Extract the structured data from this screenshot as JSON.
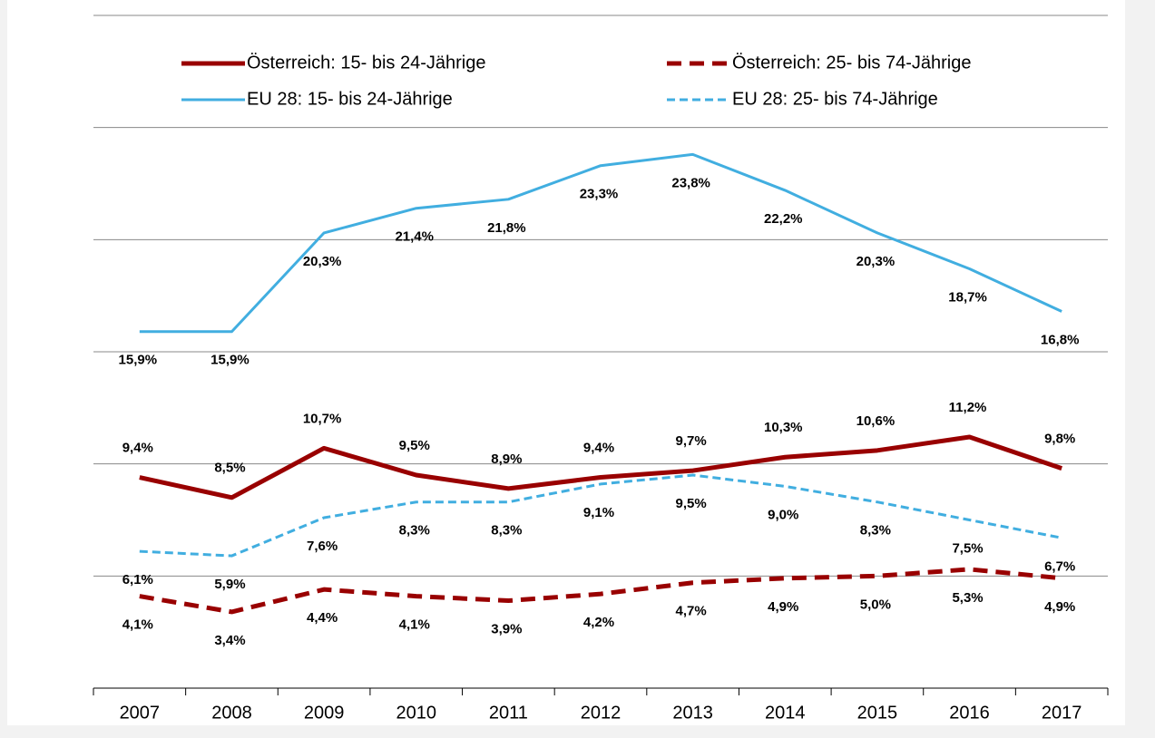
{
  "chart_data": {
    "type": "line",
    "categories": [
      "2007",
      "2008",
      "2009",
      "2010",
      "2011",
      "2012",
      "2013",
      "2014",
      "2015",
      "2016",
      "2017"
    ],
    "ylim": [
      0,
      30
    ],
    "yticks": [
      0,
      5,
      10,
      15,
      20,
      25,
      30
    ],
    "grid": true,
    "legend": "top",
    "series": [
      {
        "name": "Österreich: 15- bis 24-Jährige",
        "color": "#990000",
        "line_style": "solid",
        "values": [
          9.4,
          8.5,
          10.7,
          9.5,
          8.9,
          9.4,
          9.7,
          10.3,
          10.6,
          11.2,
          9.8
        ],
        "value_labels": [
          "9,4%",
          "8,5%",
          "10,7%",
          "9,5%",
          "8,9%",
          "9,4%",
          "9,7%",
          "10,3%",
          "10,6%",
          "11,2%",
          "9,8%"
        ]
      },
      {
        "name": "Österreich: 25- bis 74-Jährige",
        "color": "#990000",
        "line_style": "dashed",
        "values": [
          4.1,
          3.4,
          4.4,
          4.1,
          3.9,
          4.2,
          4.7,
          4.9,
          5.0,
          5.3,
          4.9
        ],
        "value_labels": [
          "4,1%",
          "3,4%",
          "4,4%",
          "4,1%",
          "3,9%",
          "4,2%",
          "4,7%",
          "4,9%",
          "5,0%",
          "5,3%",
          "4,9%"
        ]
      },
      {
        "name": "EU 28: 15- bis 24-Jährige",
        "color": "#41aee0",
        "line_style": "solid",
        "values": [
          15.9,
          15.9,
          20.3,
          21.4,
          21.8,
          23.3,
          23.8,
          22.2,
          20.3,
          18.7,
          16.8
        ],
        "value_labels": [
          "15,9%",
          "15,9%",
          "20,3%",
          "21,4%",
          "21,8%",
          "23,3%",
          "23,8%",
          "22,2%",
          "20,3%",
          "18,7%",
          "16,8%"
        ]
      },
      {
        "name": "EU 28: 25- bis 74-Jährige",
        "color": "#41aee0",
        "line_style": "dashed",
        "values": [
          6.1,
          5.9,
          7.6,
          8.3,
          8.3,
          9.1,
          9.5,
          9.0,
          8.3,
          7.5,
          6.7
        ],
        "value_labels": [
          "6,1%",
          "5,9%",
          "7,6%",
          "8,3%",
          "8,3%",
          "9,1%",
          "9,5%",
          "9,0%",
          "8,3%",
          "7,5%",
          "6,7%"
        ]
      }
    ]
  }
}
